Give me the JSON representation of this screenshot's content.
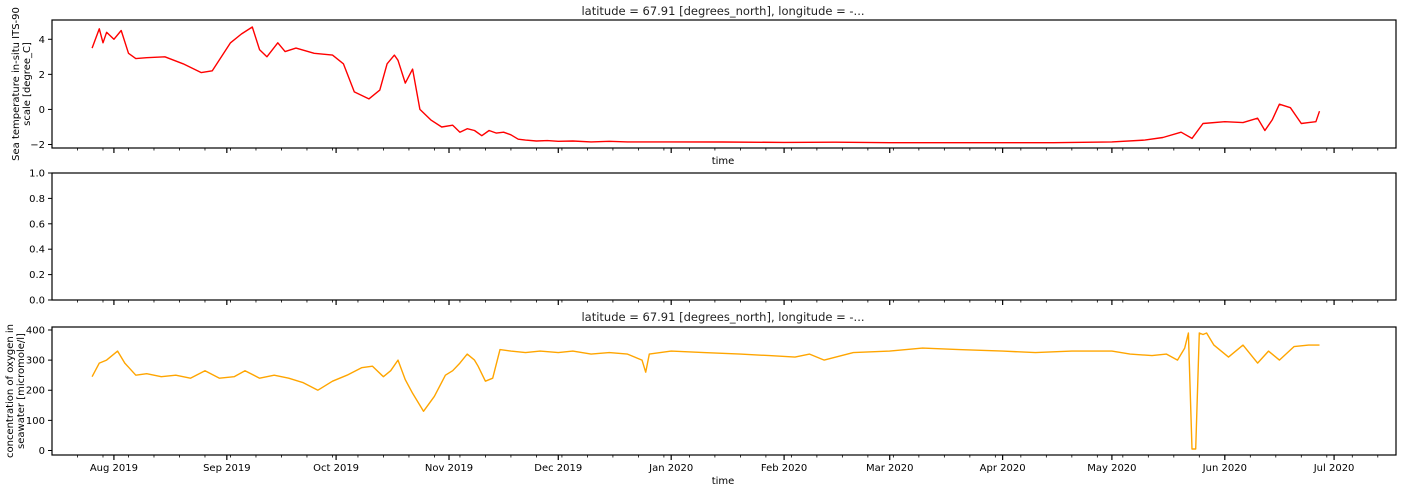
{
  "colors": {
    "temperature": "#ff0000",
    "oxygen": "#ffa500",
    "axes": "#000000"
  },
  "chart_data": [
    {
      "type": "line",
      "title": "latitude = 67.91 [degrees_north], longitude = -...",
      "xlabel": "time",
      "ylabel_lines": [
        "Sea temperature in-situ ITS-90",
        "scale [degree_C]"
      ],
      "ylim": [
        -2.2,
        5.1
      ],
      "xlim": [
        "2019-07-15",
        "2020-07-18"
      ],
      "yticks": [
        "−2",
        "0",
        "2",
        "4"
      ],
      "ytick_values": [
        -2,
        0,
        2,
        4
      ],
      "xtick_labels_visible": false,
      "series": [
        {
          "color": "#ff0000",
          "x": [
            "2019-07-26",
            "2019-07-28",
            "2019-07-29",
            "2019-07-30",
            "2019-08-01",
            "2019-08-03",
            "2019-08-05",
            "2019-08-07",
            "2019-08-10",
            "2019-08-15",
            "2019-08-20",
            "2019-08-25",
            "2019-08-28",
            "2019-09-02",
            "2019-09-05",
            "2019-09-08",
            "2019-09-10",
            "2019-09-12",
            "2019-09-15",
            "2019-09-17",
            "2019-09-20",
            "2019-09-25",
            "2019-09-30",
            "2019-10-03",
            "2019-10-06",
            "2019-10-10",
            "2019-10-13",
            "2019-10-15",
            "2019-10-17",
            "2019-10-18",
            "2019-10-20",
            "2019-10-22",
            "2019-10-24",
            "2019-10-27",
            "2019-10-30",
            "2019-11-02",
            "2019-11-04",
            "2019-11-06",
            "2019-11-08",
            "2019-11-10",
            "2019-11-12",
            "2019-11-14",
            "2019-11-16",
            "2019-11-18",
            "2019-11-20",
            "2019-11-22",
            "2019-11-25",
            "2019-11-28",
            "2019-12-01",
            "2019-12-05",
            "2019-12-10",
            "2019-12-15",
            "2019-12-20",
            "2019-12-25",
            "2020-01-01",
            "2020-01-15",
            "2020-02-01",
            "2020-02-15",
            "2020-03-01",
            "2020-03-15",
            "2020-04-01",
            "2020-04-15",
            "2020-05-01",
            "2020-05-10",
            "2020-05-15",
            "2020-05-20",
            "2020-05-23",
            "2020-05-26",
            "2020-06-01",
            "2020-06-06",
            "2020-06-10",
            "2020-06-12",
            "2020-06-14",
            "2020-06-16",
            "2020-06-19",
            "2020-06-22",
            "2020-06-24",
            "2020-06-26",
            "2020-06-27"
          ],
          "y": [
            3.5,
            4.6,
            3.8,
            4.4,
            4.0,
            4.5,
            3.2,
            2.9,
            2.95,
            3.0,
            2.6,
            2.1,
            2.2,
            3.8,
            4.3,
            4.7,
            3.4,
            3.0,
            3.8,
            3.3,
            3.5,
            3.2,
            3.1,
            2.6,
            1.0,
            0.6,
            1.1,
            2.6,
            3.1,
            2.8,
            1.5,
            2.3,
            0.0,
            -0.6,
            -1.0,
            -0.9,
            -1.3,
            -1.1,
            -1.2,
            -1.5,
            -1.2,
            -1.35,
            -1.3,
            -1.45,
            -1.7,
            -1.75,
            -1.8,
            -1.78,
            -1.82,
            -1.8,
            -1.85,
            -1.82,
            -1.85,
            -1.85,
            -1.85,
            -1.86,
            -1.88,
            -1.87,
            -1.9,
            -1.9,
            -1.9,
            -1.9,
            -1.85,
            -1.75,
            -1.6,
            -1.3,
            -1.65,
            -0.8,
            -0.7,
            -0.75,
            -0.5,
            -1.2,
            -0.6,
            0.3,
            0.1,
            -0.8,
            -0.75,
            -0.7,
            -0.1
          ]
        }
      ]
    },
    {
      "type": "line",
      "title": "",
      "xlabel": "",
      "ylabel_lines": [],
      "ylim": [
        0,
        1
      ],
      "xlim": [
        "2019-07-15",
        "2020-07-18"
      ],
      "yticks": [
        "0.0",
        "0.2",
        "0.4",
        "0.6",
        "0.8",
        "1.0"
      ],
      "ytick_values": [
        0,
        0.2,
        0.4,
        0.6,
        0.8,
        1.0
      ],
      "xtick_labels_visible": false,
      "series": []
    },
    {
      "type": "line",
      "title": "latitude = 67.91 [degrees_north], longitude = -...",
      "xlabel": "time",
      "ylabel_lines": [
        "concentration of oxygen in",
        "seawater [micromole/l]"
      ],
      "ylim": [
        -15,
        410
      ],
      "xlim": [
        "2019-07-15",
        "2020-07-18"
      ],
      "yticks": [
        "0",
        "100",
        "200",
        "300",
        "400"
      ],
      "ytick_values": [
        0,
        100,
        200,
        300,
        400
      ],
      "xtick_labels_visible": true,
      "xtick_labels": [
        "Aug 2019",
        "Sep 2019",
        "Oct 2019",
        "Nov 2019",
        "Dec 2019",
        "Jan 2020",
        "Feb 2020",
        "Mar 2020",
        "Apr 2020",
        "May 2020",
        "Jun 2020",
        "Jul 2020"
      ],
      "xtick_dates": [
        "2019-08-01",
        "2019-09-01",
        "2019-10-01",
        "2019-11-01",
        "2019-12-01",
        "2020-01-01",
        "2020-02-01",
        "2020-03-01",
        "2020-04-01",
        "2020-05-01",
        "2020-06-01",
        "2020-07-01"
      ],
      "series": [
        {
          "color": "#ffa500",
          "x": [
            "2019-07-26",
            "2019-07-28",
            "2019-07-30",
            "2019-08-02",
            "2019-08-04",
            "2019-08-07",
            "2019-08-10",
            "2019-08-14",
            "2019-08-18",
            "2019-08-22",
            "2019-08-26",
            "2019-08-30",
            "2019-09-03",
            "2019-09-06",
            "2019-09-10",
            "2019-09-14",
            "2019-09-18",
            "2019-09-22",
            "2019-09-26",
            "2019-09-30",
            "2019-10-04",
            "2019-10-08",
            "2019-10-11",
            "2019-10-14",
            "2019-10-16",
            "2019-10-18",
            "2019-10-20",
            "2019-10-22",
            "2019-10-25",
            "2019-10-28",
            "2019-10-31",
            "2019-11-02",
            "2019-11-04",
            "2019-11-06",
            "2019-11-08",
            "2019-11-09",
            "2019-11-11",
            "2019-11-13",
            "2019-11-15",
            "2019-11-18",
            "2019-11-22",
            "2019-11-26",
            "2019-12-01",
            "2019-12-05",
            "2019-12-10",
            "2019-12-15",
            "2019-12-20",
            "2019-12-24",
            "2019-12-25",
            "2019-12-26",
            "2020-01-01",
            "2020-01-10",
            "2020-01-20",
            "2020-01-28",
            "2020-02-04",
            "2020-02-08",
            "2020-02-12",
            "2020-02-20",
            "2020-03-01",
            "2020-03-10",
            "2020-03-20",
            "2020-04-01",
            "2020-04-10",
            "2020-04-20",
            "2020-05-01",
            "2020-05-06",
            "2020-05-12",
            "2020-05-16",
            "2020-05-19",
            "2020-05-21",
            "2020-05-22",
            "2020-05-23",
            "2020-05-24",
            "2020-05-25",
            "2020-05-26",
            "2020-05-27",
            "2020-05-29",
            "2020-06-02",
            "2020-06-06",
            "2020-06-10",
            "2020-06-13",
            "2020-06-16",
            "2020-06-20",
            "2020-06-24",
            "2020-06-27"
          ],
          "y": [
            245,
            290,
            300,
            330,
            290,
            250,
            255,
            245,
            250,
            240,
            265,
            240,
            245,
            265,
            240,
            250,
            240,
            225,
            200,
            230,
            250,
            275,
            280,
            245,
            265,
            300,
            235,
            190,
            130,
            180,
            250,
            265,
            290,
            320,
            300,
            280,
            230,
            240,
            335,
            330,
            325,
            330,
            325,
            330,
            320,
            325,
            320,
            300,
            260,
            320,
            330,
            325,
            320,
            315,
            310,
            320,
            300,
            325,
            330,
            340,
            335,
            330,
            325,
            330,
            330,
            320,
            315,
            320,
            300,
            340,
            390,
            5,
            5,
            390,
            385,
            390,
            350,
            310,
            350,
            290,
            330,
            300,
            345,
            350,
            350
          ]
        }
      ]
    }
  ]
}
